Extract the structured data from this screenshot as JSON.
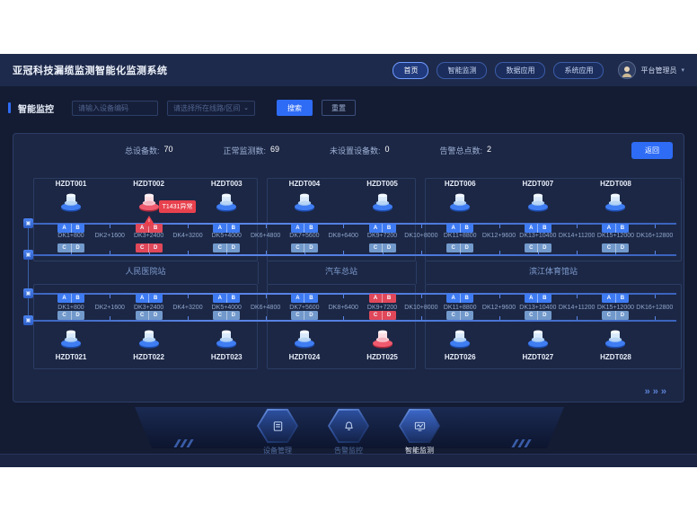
{
  "colors": {
    "accent": "#2e6cf6",
    "alert": "#e8414d",
    "panel_border": "#2c3d66",
    "ab_blue": "#3e7bf2",
    "cd_steel": "#7299cb",
    "line_blue": "#4a76d8"
  },
  "header": {
    "title": "亚冠科技漏缆监测智能化监测系统",
    "nav": [
      {
        "label": "首页",
        "active": true
      },
      {
        "label": "智能监测",
        "active": false
      },
      {
        "label": "数据应用",
        "active": false
      },
      {
        "label": "系统应用",
        "active": false
      }
    ],
    "user": {
      "name": "平台管理员",
      "caret": "▾"
    }
  },
  "filter": {
    "section_label": "智能监控",
    "device_placeholder": "请输入设备编码",
    "line_placeholder": "请选择所在线路/区间",
    "chevron": "⌄",
    "search_label": "搜索",
    "reset_label": "重置"
  },
  "stats": [
    {
      "label": "总设备数:",
      "value": "70"
    },
    {
      "label": "正常监测数:",
      "value": "69"
    },
    {
      "label": "未设置设备数:",
      "value": "0"
    },
    {
      "label": "告警总点数:",
      "value": "2"
    }
  ],
  "panel": {
    "back_label": "返回",
    "more_label": "»»»"
  },
  "map": {
    "ab_ports": [
      "A",
      "B"
    ],
    "cd_ports": [
      "C",
      "D"
    ],
    "dk_labels": [
      "DK1+800",
      "DK2+1600",
      "DK3+2400",
      "DK4+3200",
      "DK5+4000",
      "DK6+4800",
      "DK7+5600",
      "DK8+6400",
      "DK9+7200",
      "DK10+8000",
      "DK11+8800",
      "DK12+9600",
      "DK13+10400",
      "DK14+11200",
      "DK15+12000",
      "DK16+12800"
    ],
    "stations": [
      "人民医院站",
      "汽车总站",
      "滨江体育馆站"
    ],
    "top_devices": [
      {
        "id": "HZDT001",
        "dk": 1,
        "status": "normal"
      },
      {
        "id": "HZDT002",
        "dk": 3,
        "status": "alert",
        "alert_text": "T1431异常"
      },
      {
        "id": "HZDT003",
        "dk": 5,
        "status": "normal"
      },
      {
        "id": "HZDT004",
        "dk": 7,
        "status": "normal"
      },
      {
        "id": "HZDT005",
        "dk": 9,
        "status": "normal"
      },
      {
        "id": "HZDT006",
        "dk": 11,
        "status": "normal"
      },
      {
        "id": "HZDT007",
        "dk": 13,
        "status": "normal"
      },
      {
        "id": "HZDT008",
        "dk": 15,
        "status": "normal"
      }
    ],
    "bottom_devices": [
      {
        "id": "HZDT021",
        "dk": 1,
        "status": "normal"
      },
      {
        "id": "HZDT022",
        "dk": 3,
        "status": "normal"
      },
      {
        "id": "HZDT023",
        "dk": 5,
        "status": "normal"
      },
      {
        "id": "HZDT024",
        "dk": 7,
        "status": "normal"
      },
      {
        "id": "HZDT025",
        "dk": 9,
        "status": "alert"
      },
      {
        "id": "HZDT026",
        "dk": 11,
        "status": "normal"
      },
      {
        "id": "HZDT027",
        "dk": 13,
        "status": "normal"
      },
      {
        "id": "HZDT028",
        "dk": 15,
        "status": "normal"
      }
    ]
  },
  "footer": {
    "items": [
      {
        "label": "设备管理",
        "icon": "device-manage-icon",
        "active": false
      },
      {
        "label": "告警监控",
        "icon": "alarm-monitor-icon",
        "active": false
      },
      {
        "label": "智能监测",
        "icon": "smart-monitor-icon",
        "active": true
      }
    ]
  }
}
